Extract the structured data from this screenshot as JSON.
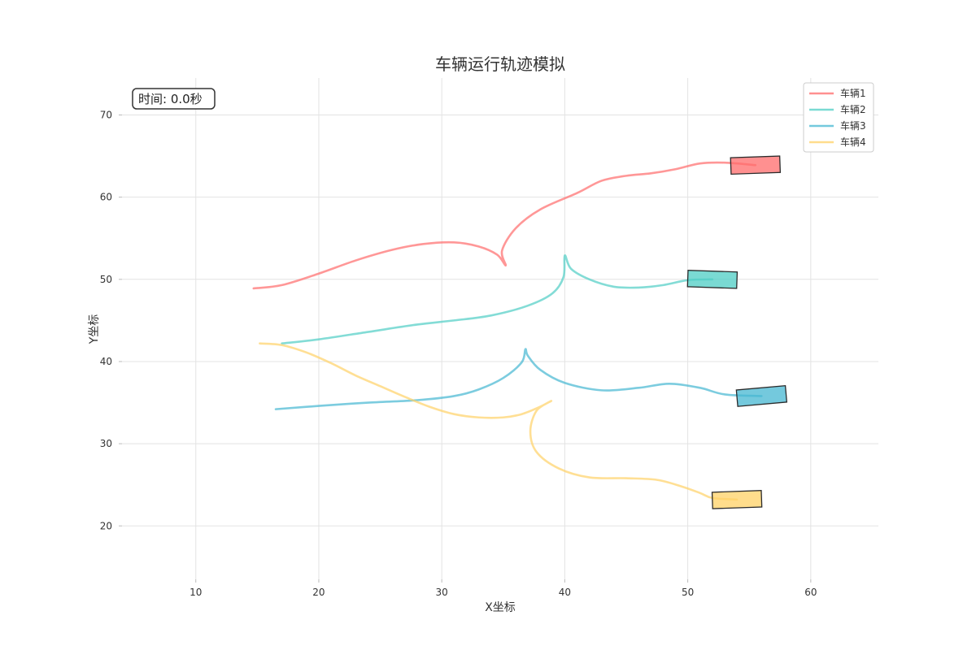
{
  "chart_data": {
    "type": "line",
    "title": "车辆运行轨迹模拟",
    "xlabel": "X坐标",
    "ylabel": "Y坐标",
    "xlim": [
      4,
      65.5
    ],
    "ylim": [
      13.5,
      74.5
    ],
    "xticks": [
      10,
      20,
      30,
      40,
      50,
      60
    ],
    "yticks": [
      20,
      30,
      40,
      50,
      60,
      70
    ],
    "grid": true,
    "legend_position": "top-right",
    "time_display": "时间: 0.0秒",
    "series": [
      {
        "name": "车辆1",
        "color": "#FF6B6B",
        "points": [
          [
            14.7,
            48.9
          ],
          [
            17,
            49.3
          ],
          [
            20,
            50.7
          ],
          [
            23,
            52.3
          ],
          [
            26,
            53.6
          ],
          [
            28.5,
            54.3
          ],
          [
            31,
            54.5
          ],
          [
            33,
            54
          ],
          [
            34.5,
            53
          ],
          [
            35.2,
            51.7
          ],
          [
            34.9,
            53.5
          ],
          [
            36,
            56.2
          ],
          [
            38,
            58.5
          ],
          [
            41,
            60.5
          ],
          [
            43,
            62
          ],
          [
            45,
            62.6
          ],
          [
            47,
            62.9
          ],
          [
            49,
            63.4
          ],
          [
            51,
            64.1
          ],
          [
            53,
            64.2
          ],
          [
            55.5,
            63.9
          ]
        ],
        "vehicle": {
          "x": 55.5,
          "y": 63.9,
          "length": 4,
          "width": 2,
          "angle_deg": 2
        }
      },
      {
        "name": "车辆2",
        "color": "#4ECDC4",
        "points": [
          [
            17,
            42.2
          ],
          [
            20,
            42.7
          ],
          [
            24,
            43.6
          ],
          [
            28,
            44.5
          ],
          [
            31,
            45
          ],
          [
            34,
            45.6
          ],
          [
            37,
            46.8
          ],
          [
            39,
            48.3
          ],
          [
            39.9,
            50.3
          ],
          [
            40,
            52.9
          ],
          [
            40.5,
            51.3
          ],
          [
            42,
            50
          ],
          [
            44,
            49.1
          ],
          [
            46,
            49
          ],
          [
            48,
            49.3
          ],
          [
            50,
            49.9
          ],
          [
            52,
            50
          ]
        ],
        "vehicle": {
          "x": 52,
          "y": 50,
          "length": 4,
          "width": 2,
          "angle_deg": -2
        }
      },
      {
        "name": "车辆3",
        "color": "#45B7D1",
        "points": [
          [
            16.5,
            34.2
          ],
          [
            20,
            34.6
          ],
          [
            24,
            35
          ],
          [
            28,
            35.3
          ],
          [
            31,
            35.8
          ],
          [
            33,
            36.6
          ],
          [
            35,
            38
          ],
          [
            36.5,
            39.9
          ],
          [
            36.8,
            41.5
          ],
          [
            37,
            40.7
          ],
          [
            38,
            39
          ],
          [
            40,
            37.4
          ],
          [
            43,
            36.5
          ],
          [
            46,
            36.8
          ],
          [
            48.5,
            37.3
          ],
          [
            51,
            36.8
          ],
          [
            53,
            36
          ],
          [
            56,
            35.8
          ]
        ],
        "vehicle": {
          "x": 56,
          "y": 35.8,
          "length": 4,
          "width": 2,
          "angle_deg": 5
        }
      },
      {
        "name": "车辆4",
        "color": "#FFD166",
        "points": [
          [
            15.2,
            42.2
          ],
          [
            17,
            42
          ],
          [
            19,
            41.1
          ],
          [
            21,
            39.8
          ],
          [
            23,
            38.3
          ],
          [
            25,
            37
          ],
          [
            27,
            35.7
          ],
          [
            29,
            34.5
          ],
          [
            31,
            33.6
          ],
          [
            33,
            33.2
          ],
          [
            35,
            33.2
          ],
          [
            36.5,
            33.6
          ],
          [
            38,
            34.5
          ],
          [
            38.9,
            35.2
          ],
          [
            37.7,
            34
          ],
          [
            37.2,
            31.5
          ],
          [
            37.7,
            29
          ],
          [
            39.5,
            27
          ],
          [
            42,
            25.9
          ],
          [
            45,
            25.8
          ],
          [
            47.5,
            25.6
          ],
          [
            49.5,
            24.8
          ],
          [
            51,
            24
          ],
          [
            52,
            23.4
          ],
          [
            54,
            23.2
          ]
        ],
        "vehicle": {
          "x": 54,
          "y": 23.2,
          "length": 4,
          "width": 2,
          "angle_deg": 2
        }
      }
    ]
  }
}
